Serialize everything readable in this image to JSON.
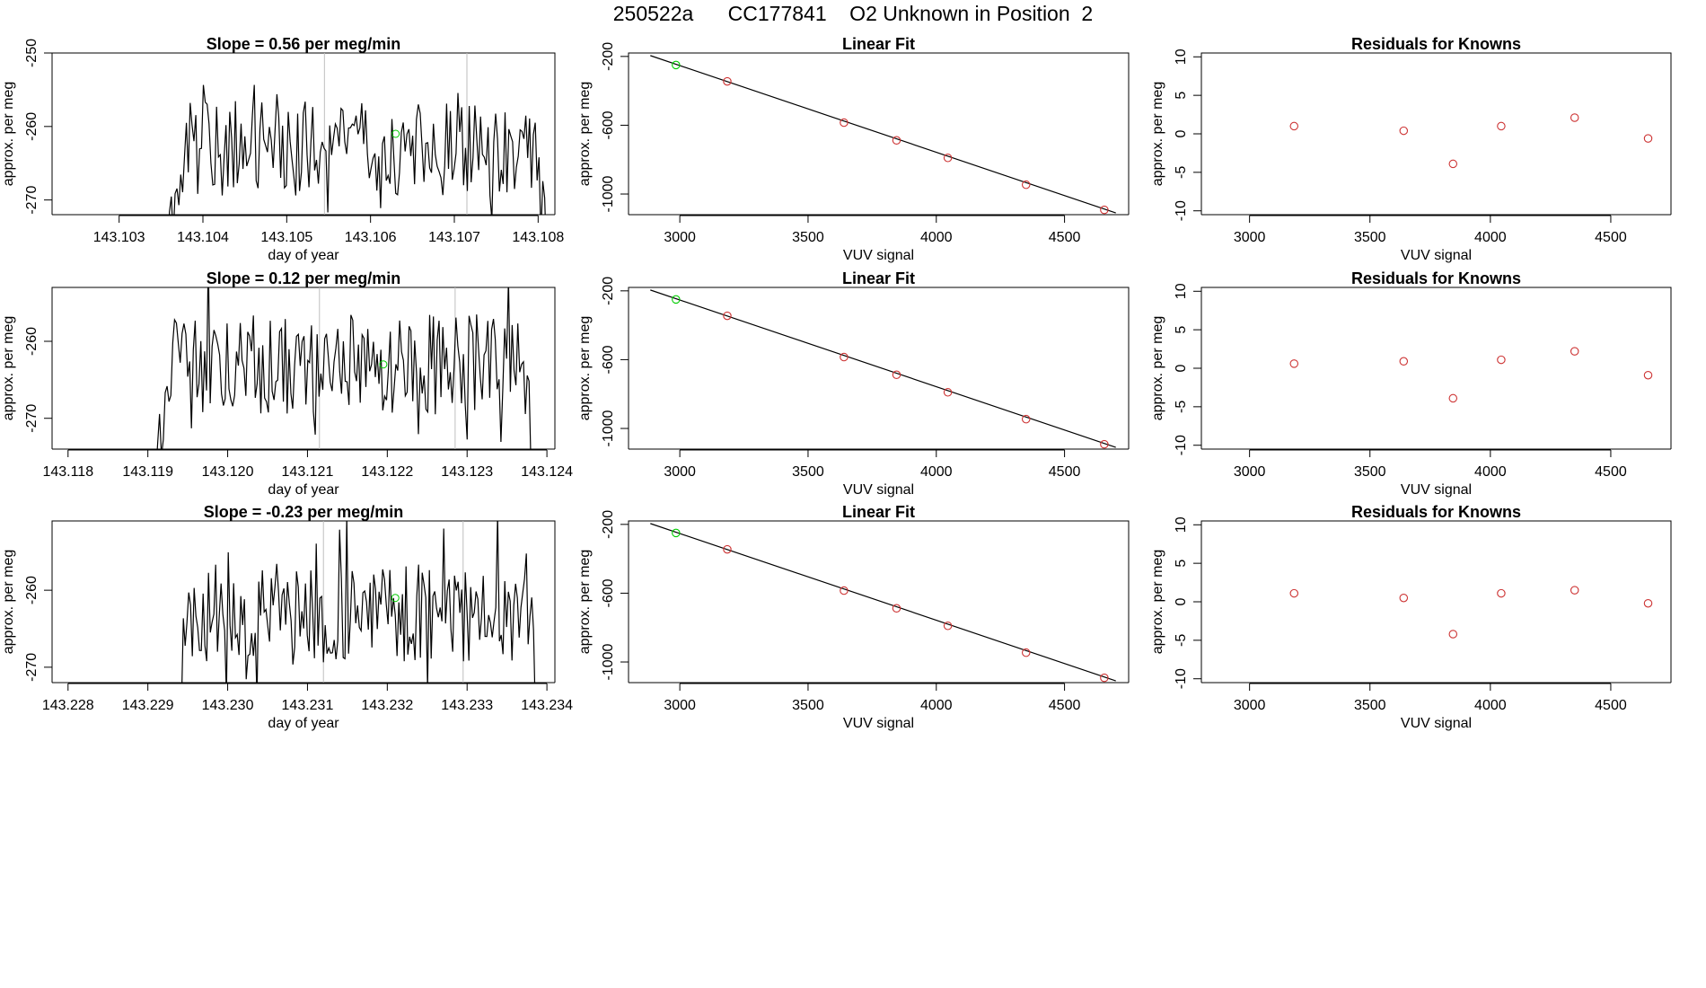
{
  "page": {
    "title": "250522a      CC177841    O2 Unknown in Position  2"
  },
  "colors": {
    "axis": "#000000",
    "line": "#000000",
    "vline": "#bebebe",
    "known_point": "#cd3333",
    "unknown_point": "#00cc00"
  },
  "chart_data": [
    {
      "id": "ts1",
      "type": "line",
      "title": "Slope =  0.56  per meg/min",
      "xlabel": "day of year",
      "ylabel": "approx. per meg",
      "xlim": [
        143.1022,
        143.1082
      ],
      "ylim": [
        -272,
        -250
      ],
      "xticks": [
        143.103,
        143.104,
        143.105,
        143.106,
        143.107,
        143.108
      ],
      "xticklabels": [
        "143.103",
        "143.104",
        "143.105",
        "143.106",
        "143.107",
        "143.108"
      ],
      "yticks": [
        -270,
        -260,
        -250
      ],
      "yticklabels": [
        "-270",
        "-260",
        "-250"
      ],
      "show_ymax_tick": true,
      "series_start": 143.1036,
      "series_end": 143.1081,
      "seed": 11,
      "vlines": [
        143.10545,
        143.10715
      ],
      "unknown_point": {
        "x": 143.1063,
        "y": -261
      }
    },
    {
      "id": "fit1",
      "type": "scatter",
      "title": "Linear Fit",
      "xlabel": "VUV signal",
      "ylabel": "approx. per meg",
      "xlim": [
        2800,
        4750
      ],
      "ylim": [
        -1120,
        -180
      ],
      "xticks": [
        3000,
        3500,
        4000,
        4500
      ],
      "xticklabels": [
        "3000",
        "3500",
        "4000",
        "4500"
      ],
      "yticks": [
        -1000,
        -600,
        -200
      ],
      "yticklabels": [
        "-1000",
        "-600",
        "-200"
      ],
      "line": {
        "x": [
          2885,
          4700
        ],
        "y": [
          -195,
          -1110
        ]
      },
      "known_points": {
        "x": [
          3185,
          3640,
          3845,
          4045,
          4350,
          4655
        ],
        "y": [
          -345,
          -585,
          -688,
          -790,
          -946,
          -1092
        ]
      },
      "unknown_points": {
        "x": [
          2985
        ],
        "y": [
          -250
        ]
      }
    },
    {
      "id": "res1",
      "type": "scatter",
      "title": "Residuals for Knowns",
      "xlabel": "VUV signal",
      "ylabel": "approx. per meg",
      "xlim": [
        2800,
        4750
      ],
      "ylim": [
        -10.5,
        10.5
      ],
      "xticks": [
        3000,
        3500,
        4000,
        4500
      ],
      "xticklabels": [
        "3000",
        "3500",
        "4000",
        "4500"
      ],
      "yticks": [
        -10,
        -5,
        0,
        5,
        10
      ],
      "yticklabels": [
        "-10",
        "-5",
        "0",
        "5",
        "10"
      ],
      "known_points": {
        "x": [
          3185,
          3640,
          3845,
          4045,
          4350,
          4655
        ],
        "y": [
          1.0,
          0.4,
          -3.9,
          1.0,
          2.1,
          -0.6
        ]
      }
    },
    {
      "id": "ts2",
      "type": "line",
      "title": "Slope =  0.12  per meg/min",
      "xlabel": "day of year",
      "ylabel": "approx. per meg",
      "xlim": [
        143.1178,
        143.1241
      ],
      "ylim": [
        -274,
        -253
      ],
      "xticks": [
        143.118,
        143.119,
        143.12,
        143.121,
        143.122,
        143.123,
        143.124
      ],
      "xticklabels": [
        "143.118",
        "143.119",
        "143.120",
        "143.121",
        "143.122",
        "143.123",
        "143.124"
      ],
      "yticks": [
        -270,
        -260
      ],
      "yticklabels": [
        "-270",
        "-260"
      ],
      "show_ymax_tick": true,
      "series_start": 143.1191,
      "series_end": 143.1238,
      "seed": 23,
      "vlines": [
        143.12115,
        143.12285
      ],
      "unknown_point": {
        "x": 143.12195,
        "y": -263
      }
    },
    {
      "id": "fit2",
      "type": "scatter",
      "title": "Linear Fit",
      "xlabel": "VUV signal",
      "ylabel": "approx. per meg",
      "xlim": [
        2800,
        4750
      ],
      "ylim": [
        -1120,
        -180
      ],
      "xticks": [
        3000,
        3500,
        4000,
        4500
      ],
      "xticklabels": [
        "3000",
        "3500",
        "4000",
        "4500"
      ],
      "yticks": [
        -1000,
        -600,
        -200
      ],
      "yticklabels": [
        "-1000",
        "-600",
        "-200"
      ],
      "line": {
        "x": [
          2885,
          4700
        ],
        "y": [
          -195,
          -1110
        ]
      },
      "known_points": {
        "x": [
          3185,
          3640,
          3845,
          4045,
          4350,
          4655
        ],
        "y": [
          -345,
          -585,
          -688,
          -790,
          -946,
          -1092
        ]
      },
      "unknown_points": {
        "x": [
          2985
        ],
        "y": [
          -250
        ]
      }
    },
    {
      "id": "res2",
      "type": "scatter",
      "title": "Residuals for Knowns",
      "xlabel": "VUV signal",
      "ylabel": "approx. per meg",
      "xlim": [
        2800,
        4750
      ],
      "ylim": [
        -10.5,
        10.5
      ],
      "xticks": [
        3000,
        3500,
        4000,
        4500
      ],
      "xticklabels": [
        "3000",
        "3500",
        "4000",
        "4500"
      ],
      "yticks": [
        -10,
        -5,
        0,
        5,
        10
      ],
      "yticklabels": [
        "-10",
        "-5",
        "0",
        "5",
        "10"
      ],
      "known_points": {
        "x": [
          3185,
          3640,
          3845,
          4045,
          4350,
          4655
        ],
        "y": [
          0.6,
          0.9,
          -3.9,
          1.1,
          2.2,
          -0.9
        ]
      }
    },
    {
      "id": "ts3",
      "type": "line",
      "title": "Slope =  -0.23  per meg/min",
      "xlabel": "day of year",
      "ylabel": "approx. per meg",
      "xlim": [
        143.2278,
        143.2341
      ],
      "ylim": [
        -272,
        -251
      ],
      "xticks": [
        143.228,
        143.229,
        143.23,
        143.231,
        143.232,
        143.233,
        143.234
      ],
      "xticklabels": [
        "143.228",
        "143.229",
        "143.230",
        "143.231",
        "143.232",
        "143.233",
        "143.234"
      ],
      "yticks": [
        -270,
        -260
      ],
      "yticklabels": [
        "-270",
        "-260"
      ],
      "show_ymax_tick": true,
      "series_start": 143.2294,
      "series_end": 143.2339,
      "seed": 37,
      "vlines": [
        143.2312,
        143.23295
      ],
      "unknown_point": {
        "x": 143.2321,
        "y": -261
      }
    },
    {
      "id": "fit3",
      "type": "scatter",
      "title": "Linear Fit",
      "xlabel": "VUV signal",
      "ylabel": "approx. per meg",
      "xlim": [
        2800,
        4750
      ],
      "ylim": [
        -1120,
        -180
      ],
      "xticks": [
        3000,
        3500,
        4000,
        4500
      ],
      "xticklabels": [
        "3000",
        "3500",
        "4000",
        "4500"
      ],
      "yticks": [
        -1000,
        -600,
        -200
      ],
      "yticklabels": [
        "-1000",
        "-600",
        "-200"
      ],
      "line": {
        "x": [
          2885,
          4700
        ],
        "y": [
          -195,
          -1110
        ]
      },
      "known_points": {
        "x": [
          3185,
          3640,
          3845,
          4045,
          4350,
          4655
        ],
        "y": [
          -345,
          -585,
          -688,
          -790,
          -946,
          -1092
        ]
      },
      "unknown_points": {
        "x": [
          2985
        ],
        "y": [
          -250
        ]
      }
    },
    {
      "id": "res3",
      "type": "scatter",
      "title": "Residuals for Knowns",
      "xlabel": "VUV signal",
      "ylabel": "approx. per meg",
      "xlim": [
        2800,
        4750
      ],
      "ylim": [
        -10.5,
        10.5
      ],
      "xticks": [
        3000,
        3500,
        4000,
        4500
      ],
      "xticklabels": [
        "3000",
        "3500",
        "4000",
        "4500"
      ],
      "yticks": [
        -10,
        -5,
        0,
        5,
        10
      ],
      "yticklabels": [
        "-10",
        "-5",
        "0",
        "5",
        "10"
      ],
      "known_points": {
        "x": [
          3185,
          3640,
          3845,
          4045,
          4350,
          4655
        ],
        "y": [
          1.1,
          0.5,
          -4.2,
          1.1,
          1.5,
          -0.2
        ]
      }
    }
  ]
}
